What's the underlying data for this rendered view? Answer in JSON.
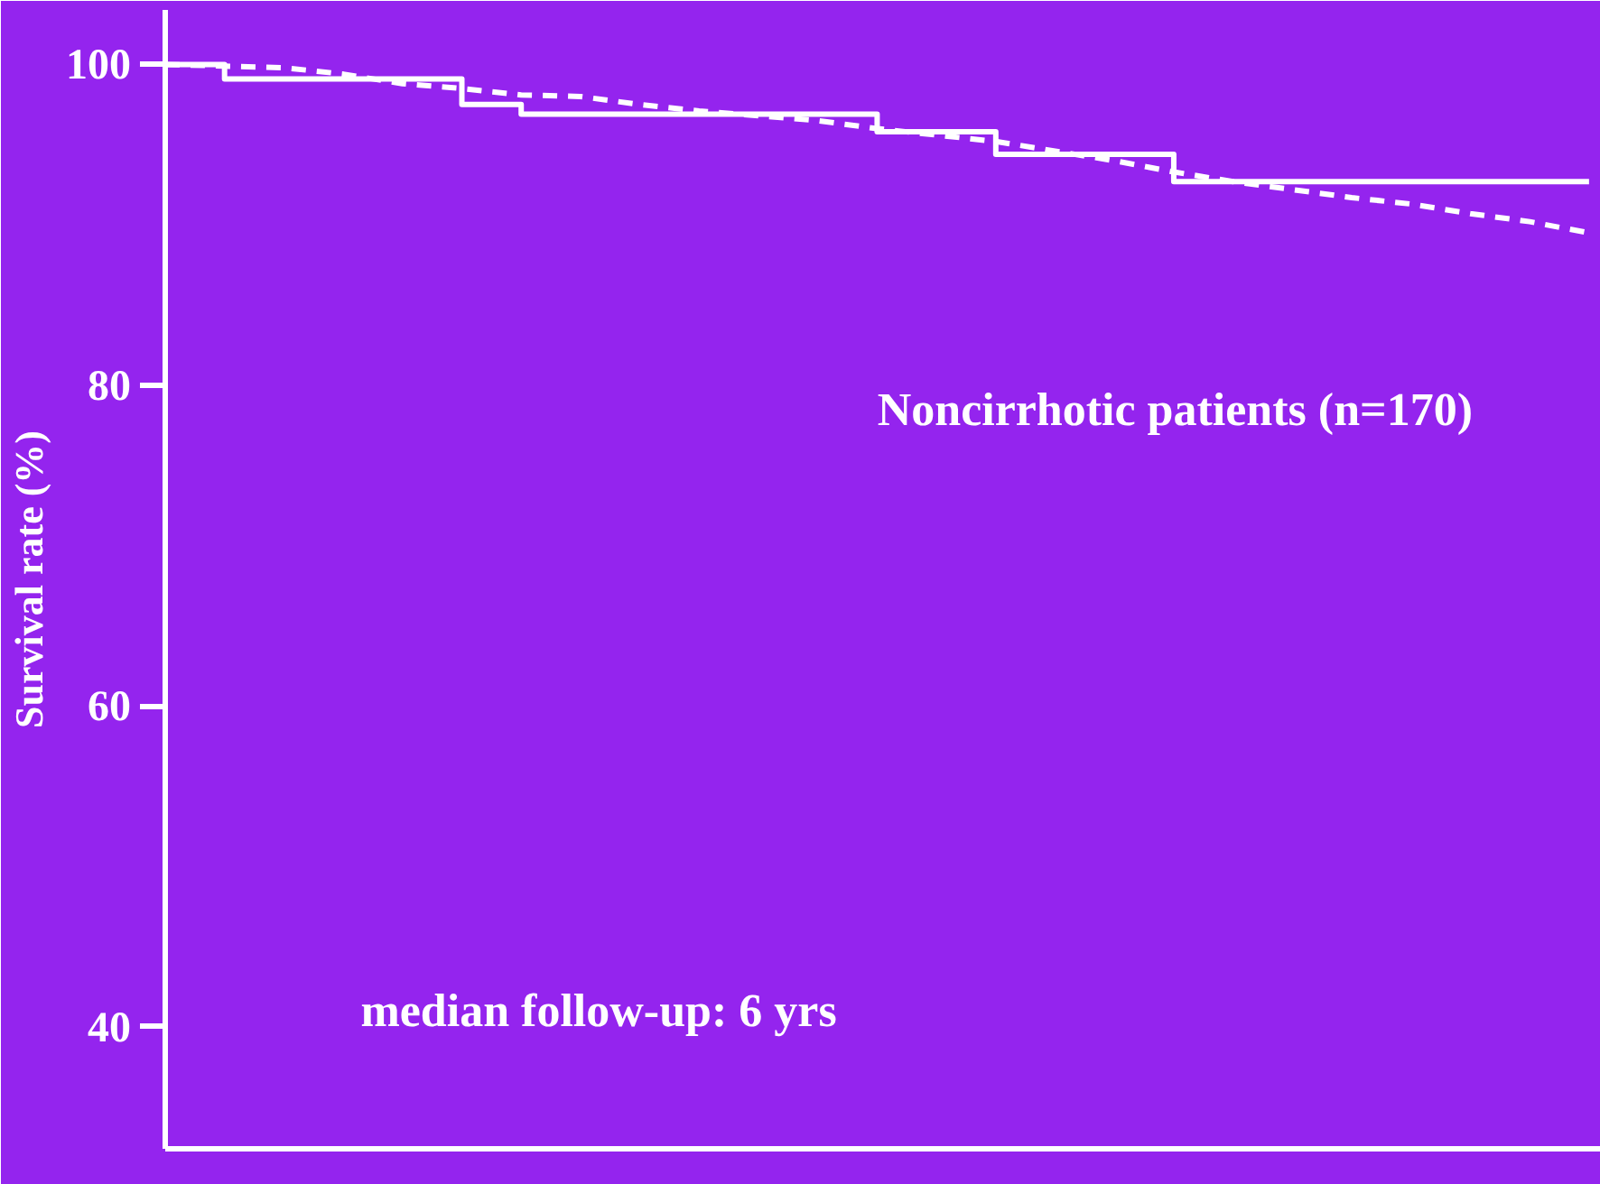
{
  "chart_data": {
    "type": "step",
    "ylabel": "Survival rate (%)",
    "annotations": [
      "Noncirrhotic patients (n=170)",
      "median follow-up: 6 yrs"
    ],
    "categories": [
      null,
      null,
      null,
      null,
      null,
      null,
      null,
      null,
      null,
      null,
      null,
      null,
      null,
      null,
      null,
      null,
      null,
      null,
      null,
      null,
      null,
      null,
      null,
      null,
      null
    ],
    "series": [
      {
        "color": "#ffffff",
        "line_style": "solid",
        "values": [
          100,
          99.1,
          99.1,
          99.1,
          99.1,
          97.5,
          96.9,
          96.9,
          96.9,
          96.9,
          96.9,
          96.9,
          95.8,
          95.8,
          94.4,
          94.4,
          94.4,
          92.7,
          92.7,
          92.7,
          92.7,
          92.7,
          92.7,
          92.7,
          92.7
        ]
      },
      {
        "type": "line",
        "color": "#ffffff",
        "line_style": "dashed",
        "values": [
          100,
          99.9,
          99.8,
          99.4,
          98.8,
          98.5,
          98.1,
          98.0,
          97.5,
          97.1,
          96.8,
          96.5,
          96.0,
          95.6,
          95.2,
          94.6,
          94.0,
          93.3,
          92.7,
          92.2,
          91.7,
          91.3,
          90.7,
          90.2,
          89.5
        ]
      }
    ],
    "ylim": [
      32.4,
      103.4
    ],
    "yticks": [
      40,
      60,
      80,
      100
    ],
    "tick_labels": "y",
    "grid": false,
    "marker": "none"
  }
}
